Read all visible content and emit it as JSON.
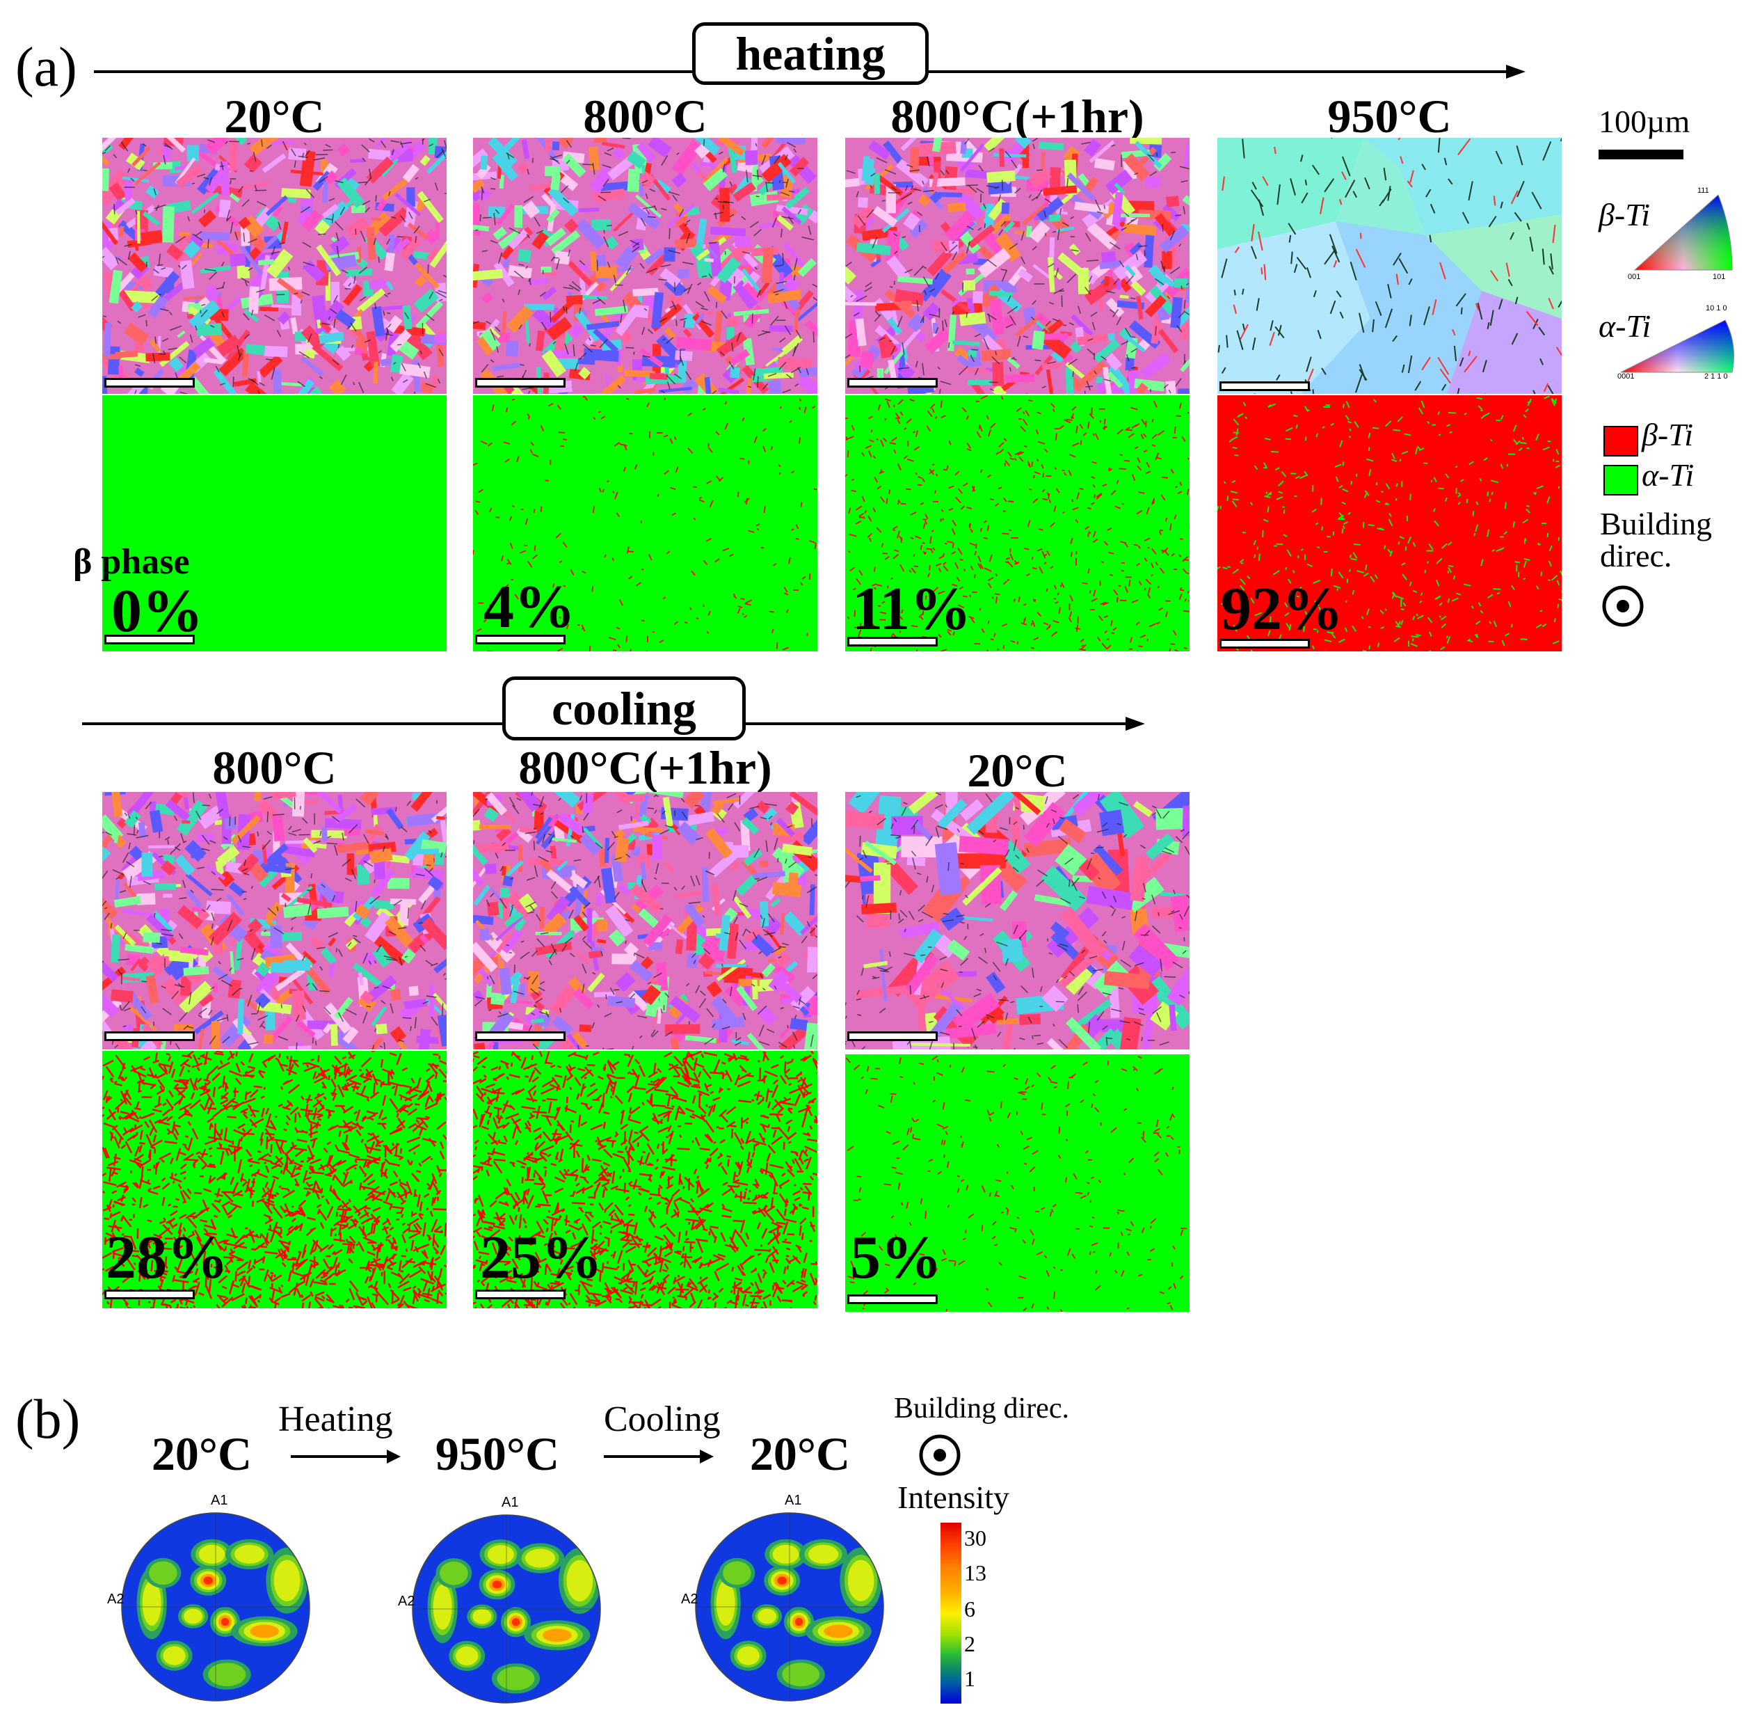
{
  "panel_a": {
    "label": "(a)",
    "heating_label": "heating",
    "cooling_label": "cooling",
    "beta_phase_label": "β phase",
    "heating": [
      {
        "temp": "20°C",
        "beta_pct": "0%",
        "beta_fraction": 0.0
      },
      {
        "temp": "800°C",
        "beta_pct": "4%",
        "beta_fraction": 0.04
      },
      {
        "temp": "800°C(+1hr)",
        "beta_pct": "11%",
        "beta_fraction": 0.11
      },
      {
        "temp": "950°C",
        "beta_pct": "92%",
        "beta_fraction": 0.92
      }
    ],
    "cooling": [
      {
        "temp": "800°C",
        "beta_pct": "28%",
        "beta_fraction": 0.28
      },
      {
        "temp": "800°C(+1hr)",
        "beta_pct": "25%",
        "beta_fraction": 0.25
      },
      {
        "temp": "20°C",
        "beta_pct": "5%",
        "beta_fraction": 0.05
      }
    ],
    "scale_label": "100µm",
    "ipf": {
      "beta_label": "β-Ti",
      "beta_corners": {
        "top": "111",
        "left": "001",
        "right": "101"
      },
      "alpha_label": "α-Ti",
      "alpha_corners": {
        "top": "10 1 0",
        "left": "0001",
        "right": "2 1 1 0"
      }
    },
    "phase_legend": {
      "beta": "β-Ti",
      "alpha": "α-Ti"
    },
    "building_direction": "Building direc.",
    "colors": {
      "beta": "#ff0000",
      "alpha": "#00ff00"
    }
  },
  "panel_b": {
    "label": "(b)",
    "temps": [
      "20°C",
      "950°C",
      "20°C"
    ],
    "heating_label": "Heating",
    "cooling_label": "Cooling",
    "building_direction": "Building direc.",
    "pole_axis_top": "A1",
    "pole_axis_left": "A2",
    "intensity_title": "Intensity",
    "intensity_ticks": [
      "30",
      "13",
      "6",
      "2",
      "1"
    ]
  }
}
